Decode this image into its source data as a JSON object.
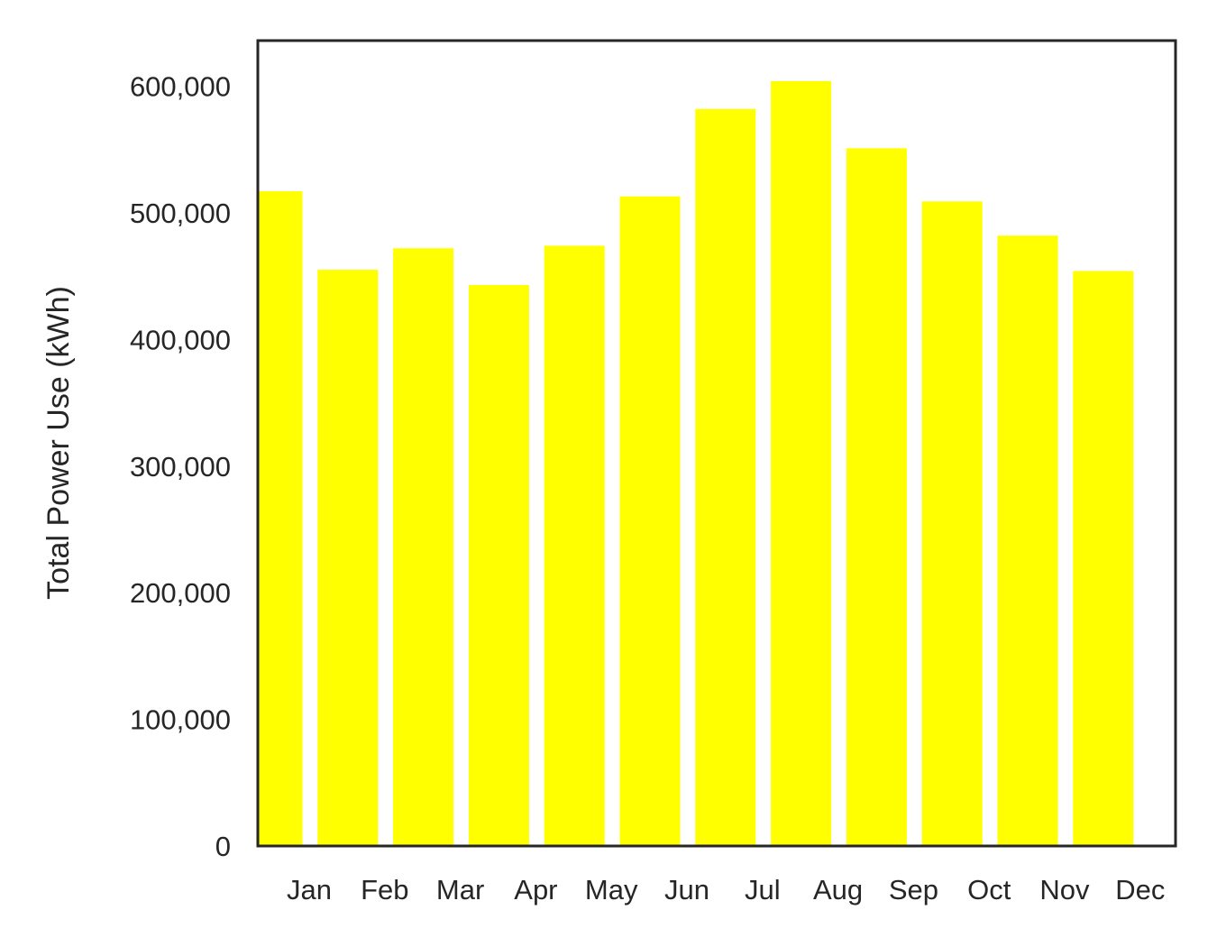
{
  "chart_data": {
    "type": "bar",
    "categories": [
      "Jan",
      "Feb",
      "Mar",
      "Apr",
      "May",
      "Jun",
      "Jul",
      "Aug",
      "Sep",
      "Oct",
      "Nov",
      "Dec"
    ],
    "values": [
      517000,
      455000,
      472000,
      443000,
      474000,
      513000,
      582000,
      604000,
      551000,
      509000,
      482000,
      454000
    ],
    "ylabel": "Total Power Use (kWh)",
    "xlabel": "",
    "title": "",
    "ylim": [
      0,
      636000
    ],
    "yticks": [
      0,
      100000,
      200000,
      300000,
      400000,
      500000,
      600000
    ],
    "ytick_labels": [
      "0",
      "100,000",
      "200,000",
      "300,000",
      "400,000",
      "500,000",
      "600,000"
    ],
    "bar_color": "#ffff00",
    "axis_color": "#262626",
    "grid": false,
    "legend": "none"
  }
}
